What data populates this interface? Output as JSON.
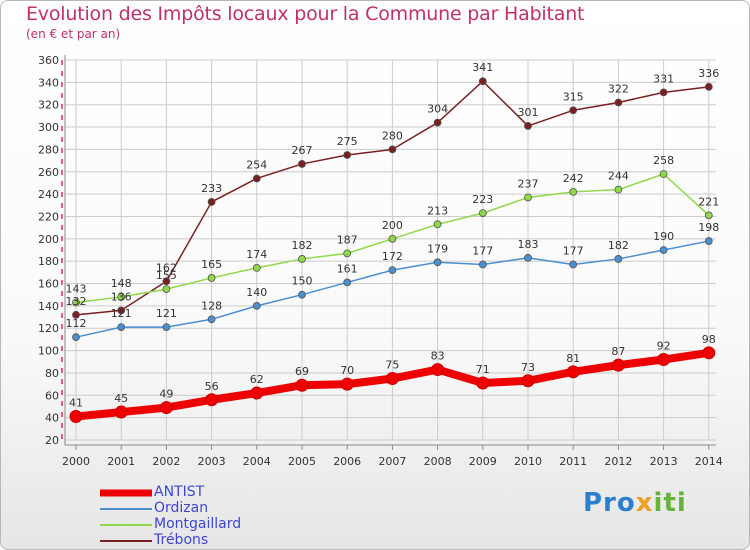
{
  "title": "Evolution des Impôts locaux pour la Commune par Habitant",
  "subtitle": "(en € et par an)",
  "brand": "Proxiti",
  "colors": {
    "title": "#c0306a",
    "legend_text": "#3d47d1",
    "grid": "#cccccc",
    "axis_marks": "#d9314c"
  },
  "chart_data": {
    "type": "line",
    "x": [
      "2000",
      "2001",
      "2002",
      "2003",
      "2004",
      "2005",
      "2006",
      "2007",
      "2008",
      "2009",
      "2010",
      "2011",
      "2012",
      "2013",
      "2014"
    ],
    "ylim": [
      20,
      360
    ],
    "yticks": [
      20,
      40,
      60,
      80,
      100,
      120,
      140,
      160,
      180,
      200,
      220,
      240,
      260,
      280,
      300,
      320,
      340,
      360
    ],
    "grid": true,
    "legend_position": "bottom-left",
    "series": [
      {
        "name": "ANTIST",
        "color": "#ee0000",
        "values": [
          41,
          45,
          49,
          56,
          62,
          69,
          70,
          75,
          83,
          71,
          73,
          81,
          87,
          92,
          98
        ]
      },
      {
        "name": "Ordizan",
        "color": "#4a8fd0",
        "values": [
          112,
          121,
          121,
          128,
          140,
          150,
          161,
          172,
          179,
          177,
          183,
          177,
          182,
          190,
          198
        ]
      },
      {
        "name": "Montgaillard",
        "color": "#8fd84a",
        "values": [
          143,
          148,
          155,
          165,
          174,
          182,
          187,
          200,
          213,
          223,
          237,
          242,
          244,
          258,
          221
        ]
      },
      {
        "name": "Trébons",
        "color": "#7a2020",
        "values": [
          132,
          136,
          162,
          233,
          254,
          267,
          275,
          280,
          304,
          341,
          301,
          315,
          322,
          331,
          336
        ]
      }
    ]
  }
}
